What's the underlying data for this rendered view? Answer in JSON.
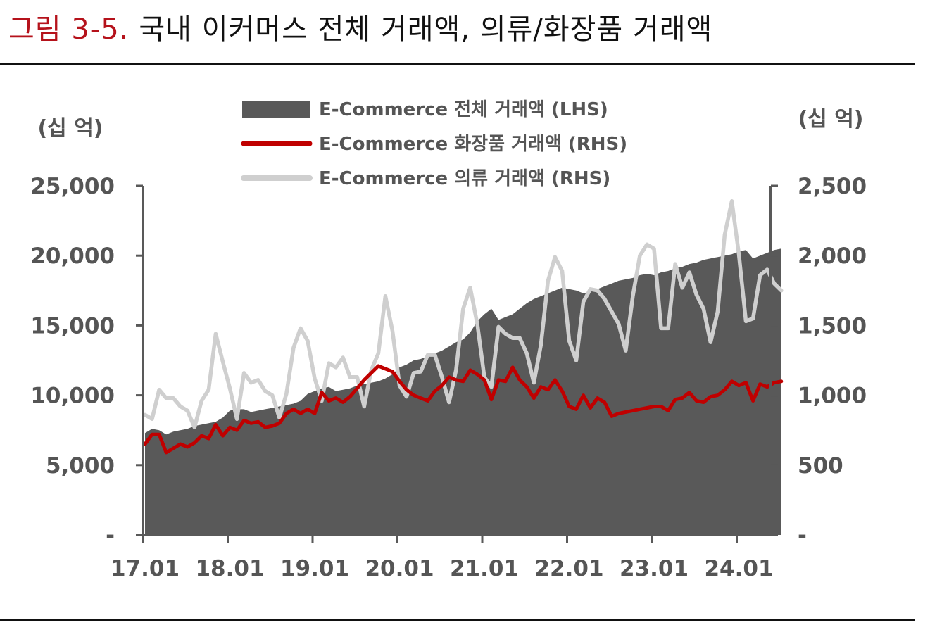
{
  "header": {
    "figure_label": "그림 3-5.",
    "title": "국내 이커머스 전체 거래액, 의류/화장품 거래액"
  },
  "chart_data": {
    "type": "area+line",
    "unit_left": "(십 억)",
    "unit_right": "(십 억)",
    "x_tick_labels": [
      "17.01",
      "18.01",
      "19.01",
      "20.01",
      "21.01",
      "22.01",
      "23.01",
      "24.01"
    ],
    "y_left_ticks": [
      "-",
      "5,000",
      "10,000",
      "15,000",
      "20,000",
      "25,000"
    ],
    "y_right_ticks": [
      "-",
      "500",
      "1,000",
      "1,500",
      "2,000",
      "2,500"
    ],
    "ylim_left": [
      0,
      25000
    ],
    "ylim_right": [
      0,
      2500
    ],
    "legend_position": "top-center",
    "colors": {
      "total": "#595959",
      "cosmetics": "#c00000",
      "apparel": "#cfcfcf",
      "axis": "#595959"
    },
    "x_start_month": "2017-01",
    "series": [
      {
        "name": "E-Commerce 전체 거래액 (LHS)",
        "axis": "left",
        "style": "area",
        "values": [
          7300,
          7600,
          7500,
          7200,
          7400,
          7500,
          7600,
          7800,
          7900,
          8000,
          8100,
          8400,
          8900,
          9000,
          9000,
          8800,
          8900,
          9000,
          9100,
          9200,
          9300,
          9400,
          9600,
          10100,
          10300,
          10500,
          10600,
          10300,
          10400,
          10500,
          10700,
          10800,
          10900,
          11000,
          11200,
          11500,
          12000,
          12200,
          12500,
          12600,
          12800,
          13000,
          13200,
          13500,
          13800,
          14000,
          14500,
          15300,
          15800,
          16200,
          15400,
          15600,
          15800,
          16200,
          16600,
          16900,
          17100,
          17300,
          17500,
          17700,
          17600,
          17500,
          17300,
          17400,
          17600,
          17800,
          18000,
          18200,
          18300,
          18400,
          18600,
          18700,
          18600,
          18800,
          18900,
          19100,
          19200,
          19400,
          19500,
          19700,
          19800,
          19900,
          20000,
          20100,
          20300,
          20400,
          19800,
          20000,
          20200,
          20400,
          20500
        ]
      },
      {
        "name": "E-Commerce 화장품 거래액 (RHS)",
        "axis": "right",
        "style": "line",
        "values": [
          650,
          720,
          720,
          590,
          620,
          650,
          630,
          660,
          710,
          690,
          790,
          710,
          770,
          750,
          820,
          800,
          810,
          770,
          780,
          800,
          870,
          900,
          870,
          900,
          870,
          1020,
          960,
          980,
          950,
          990,
          1050,
          1110,
          1160,
          1210,
          1190,
          1170,
          1100,
          1040,
          1000,
          980,
          960,
          1030,
          1070,
          1130,
          1110,
          1100,
          1180,
          1150,
          1110,
          970,
          1110,
          1100,
          1200,
          1110,
          1060,
          980,
          1060,
          1040,
          1110,
          1030,
          920,
          900,
          1000,
          910,
          980,
          950,
          850,
          870,
          880,
          890,
          900,
          910,
          920,
          920,
          890,
          970,
          980,
          1020,
          960,
          950,
          990,
          1000,
          1040,
          1100,
          1070,
          1090,
          960,
          1080,
          1060,
          1090,
          1100
        ]
      },
      {
        "name": "E-Commerce 의류 거래액 (RHS)",
        "axis": "right",
        "style": "line",
        "values": [
          860,
          830,
          1040,
          980,
          980,
          920,
          890,
          770,
          960,
          1040,
          1440,
          1240,
          1050,
          830,
          1160,
          1090,
          1110,
          1030,
          1000,
          840,
          1010,
          1340,
          1480,
          1390,
          1120,
          960,
          1230,
          1200,
          1270,
          1130,
          1130,
          920,
          1180,
          1300,
          1710,
          1460,
          1070,
          990,
          1160,
          1170,
          1290,
          1290,
          1130,
          950,
          1180,
          1620,
          1770,
          1510,
          1130,
          1060,
          1490,
          1440,
          1410,
          1410,
          1300,
          1090,
          1360,
          1820,
          1990,
          1890,
          1390,
          1250,
          1670,
          1760,
          1750,
          1690,
          1600,
          1510,
          1320,
          1710,
          2000,
          2080,
          2050,
          1480,
          1480,
          1940,
          1770,
          1880,
          1720,
          1620,
          1380,
          1600,
          2150,
          2390,
          2010,
          1530,
          1550,
          1860,
          1900,
          1800,
          1750
        ]
      }
    ]
  }
}
